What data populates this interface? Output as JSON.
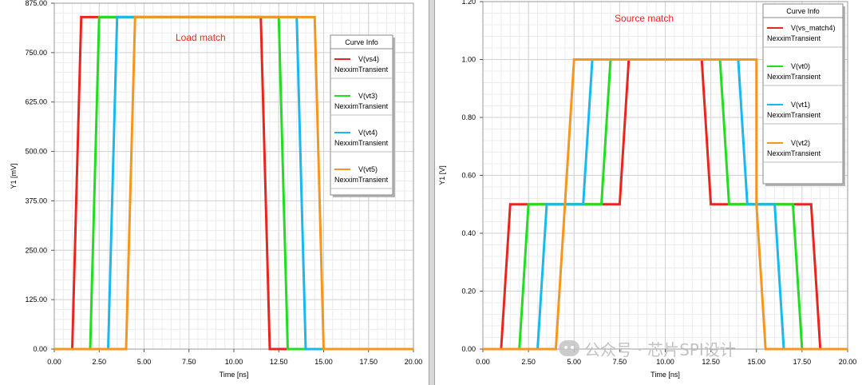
{
  "chart_data": [
    {
      "type": "line",
      "title": "",
      "annotation": "Load match",
      "xlabel": "Time [ns]",
      "ylabel": "Y1 [mV]",
      "xlim": [
        0,
        20
      ],
      "ylim": [
        0,
        875
      ],
      "x_ticks": [
        0,
        2.5,
        5,
        7.5,
        10,
        12.5,
        15,
        17.5,
        20
      ],
      "x_tick_labels": [
        "0.00",
        "2.50",
        "5.00",
        "7.50",
        "10.00",
        "12.50",
        "15.00",
        "17.50",
        "20.00"
      ],
      "y_ticks": [
        0,
        125,
        250,
        375,
        500,
        625,
        750,
        875
      ],
      "y_tick_labels": [
        "0.00",
        "125.00",
        "250.00",
        "375.00",
        "500.00",
        "625.00",
        "750.00",
        "875.00"
      ],
      "grid": true,
      "legend": {
        "title": "Curve Info",
        "placement": "top-right",
        "entries": [
          {
            "name": "V(vs4)",
            "source": "NexximTransient",
            "color": "#e8261f"
          },
          {
            "name": "V(vt3)",
            "source": "NexximTransient",
            "color": "#22dd22"
          },
          {
            "name": "V(vt4)",
            "source": "NexximTransient",
            "color": "#1ab8ee"
          },
          {
            "name": "V(vt5)",
            "source": "NexximTransient",
            "color": "#f5961e"
          }
        ]
      },
      "series": [
        {
          "name": "V(vs4)",
          "color": "#e8261f",
          "x": [
            0,
            1.0,
            1.5,
            11.5,
            12.0,
            20
          ],
          "y": [
            0,
            0,
            840,
            840,
            0,
            0
          ]
        },
        {
          "name": "V(vt3)",
          "color": "#22dd22",
          "x": [
            0,
            2.0,
            2.5,
            12.5,
            13.0,
            20
          ],
          "y": [
            0,
            0,
            840,
            840,
            0,
            0
          ]
        },
        {
          "name": "V(vt4)",
          "color": "#1ab8ee",
          "x": [
            0,
            3.0,
            3.5,
            13.5,
            14.0,
            20
          ],
          "y": [
            0,
            0,
            840,
            840,
            0,
            0
          ]
        },
        {
          "name": "V(vt5)",
          "color": "#f5961e",
          "x": [
            0,
            4.0,
            4.5,
            14.5,
            15.0,
            20
          ],
          "y": [
            0,
            0,
            840,
            840,
            0,
            0
          ]
        }
      ]
    },
    {
      "type": "line",
      "title": "",
      "annotation": "Source match",
      "xlabel": "Time [ns]",
      "ylabel": "Y1 [V]",
      "xlim": [
        0,
        20
      ],
      "ylim": [
        0,
        1.2
      ],
      "x_ticks": [
        0,
        2.5,
        5,
        7.5,
        10,
        12.5,
        15,
        17.5,
        20
      ],
      "x_tick_labels": [
        "0.00",
        "2.50",
        "5.00",
        "7.50",
        "10.00",
        "12.50",
        "15.00",
        "17.50",
        "20.00"
      ],
      "y_ticks": [
        0,
        0.2,
        0.4,
        0.6,
        0.8,
        1.0,
        1.2
      ],
      "y_tick_labels": [
        "0.00",
        "0.20",
        "0.40",
        "0.60",
        "0.80",
        "1.00",
        "1.20"
      ],
      "grid": true,
      "legend": {
        "title": "Curve Info",
        "placement": "top-right",
        "entries": [
          {
            "name": "V(vs_match4)",
            "source": "NexximTransient",
            "color": "#e8261f"
          },
          {
            "name": "V(vt0)",
            "source": "NexximTransient",
            "color": "#22dd22"
          },
          {
            "name": "V(vt1)",
            "source": "NexximTransient",
            "color": "#1ab8ee"
          },
          {
            "name": "V(vt2)",
            "source": "NexximTransient",
            "color": "#f5961e"
          }
        ]
      },
      "series": [
        {
          "name": "V(vs_match4)",
          "color": "#e8261f",
          "x": [
            0,
            1.0,
            1.5,
            7.5,
            8.0,
            12.0,
            12.5,
            18.0,
            18.5,
            20
          ],
          "y": [
            0,
            0,
            0.5,
            0.5,
            1.0,
            1.0,
            0.5,
            0.5,
            0,
            0
          ]
        },
        {
          "name": "V(vt0)",
          "color": "#22dd22",
          "x": [
            0,
            2.0,
            2.5,
            6.5,
            7.0,
            13.0,
            13.5,
            17.0,
            17.5,
            20
          ],
          "y": [
            0,
            0,
            0.5,
            0.5,
            1.0,
            1.0,
            0.5,
            0.5,
            0,
            0
          ]
        },
        {
          "name": "V(vt1)",
          "color": "#1ab8ee",
          "x": [
            0,
            3.0,
            3.5,
            5.5,
            6.0,
            14.0,
            14.5,
            16.0,
            16.5,
            20
          ],
          "y": [
            0,
            0,
            0.5,
            0.5,
            1.0,
            1.0,
            0.5,
            0.5,
            0,
            0
          ]
        },
        {
          "name": "V(vt2)",
          "color": "#f5961e",
          "x": [
            0,
            4.0,
            4.5,
            4.5,
            5.0,
            15.0,
            15.0,
            15.0,
            15.5,
            20
          ],
          "y": [
            0,
            0,
            0.5,
            0.5,
            1.0,
            1.0,
            0.5,
            0.5,
            0,
            0
          ]
        }
      ]
    }
  ],
  "watermark": {
    "text": "公众号 · 芯片SPI设计"
  }
}
